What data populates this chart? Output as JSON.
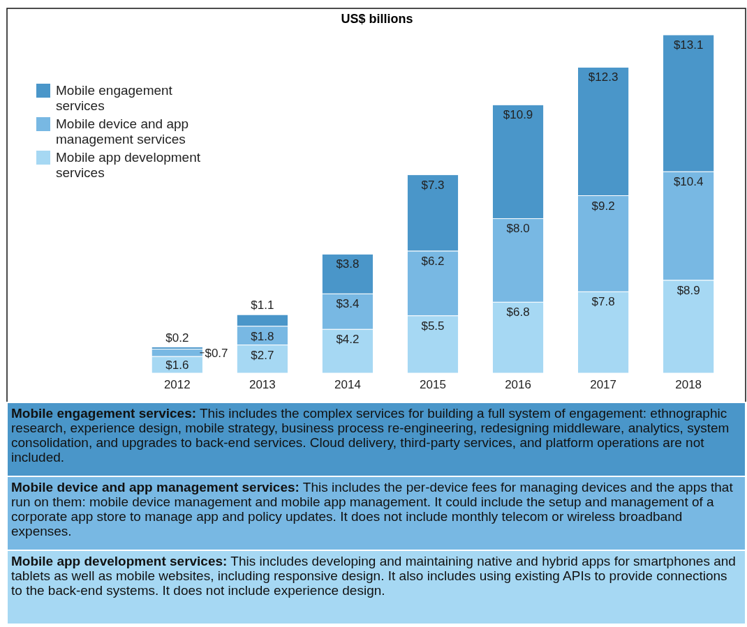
{
  "chart_data": {
    "type": "bar",
    "title": "US$ billions",
    "stacked": true,
    "legend": "top left",
    "categories": [
      "2012",
      "2013",
      "2014",
      "2015",
      "2016",
      "2017",
      "2018"
    ],
    "series": [
      {
        "name": "Mobile app development services",
        "color": "#a6d8f3",
        "values": [
          1.6,
          2.7,
          4.2,
          5.5,
          6.8,
          7.8,
          8.9
        ],
        "value_labels": [
          "$1.6",
          "$2.7",
          "$4.2",
          "$5.5",
          "$6.8",
          "$7.8",
          "$8.9"
        ]
      },
      {
        "name": "Mobile device and app management services",
        "color": "#78b8e3",
        "values": [
          0.7,
          1.8,
          3.4,
          6.2,
          8.0,
          9.2,
          10.4
        ],
        "value_labels": [
          "$0.7",
          "$1.8",
          "$3.4",
          "$6.2",
          "$8.0",
          "$9.2",
          "$10.4"
        ]
      },
      {
        "name": "Mobile engagement services",
        "color": "#4a96c9",
        "values": [
          0.2,
          1.1,
          3.8,
          7.3,
          10.9,
          12.3,
          13.1
        ],
        "value_labels": [
          "$0.2",
          "$1.1",
          "$3.8",
          "$7.3",
          "$10.9",
          "$12.3",
          "$13.1"
        ]
      }
    ],
    "annotations": [
      "Mobile engagement services: This includes the complex services for building a full system of engagement: ethnographic research, experience design, mobile strategy, business process re-engineering, redesigning middleware, analytics, system consolidation, and upgrades to back-end services. Cloud delivery, third-party services, and platform operations are not included.",
      "Mobile device and app management services: This includes the per-device fees for managing devices and the apps that run on them: mobile device management and mobile app management. It could include the setup and management of a corporate app store to manage app and policy updates. It does not include monthly telecom or wireless broadband expenses.",
      "Mobile app development services: This includes developing and maintaining native and hybrid apps for smartphones and tablets as well as mobile websites, including responsive design. It also includes using existing APIs to provide connections to the back-end systems. It does not include experience design."
    ]
  }
}
